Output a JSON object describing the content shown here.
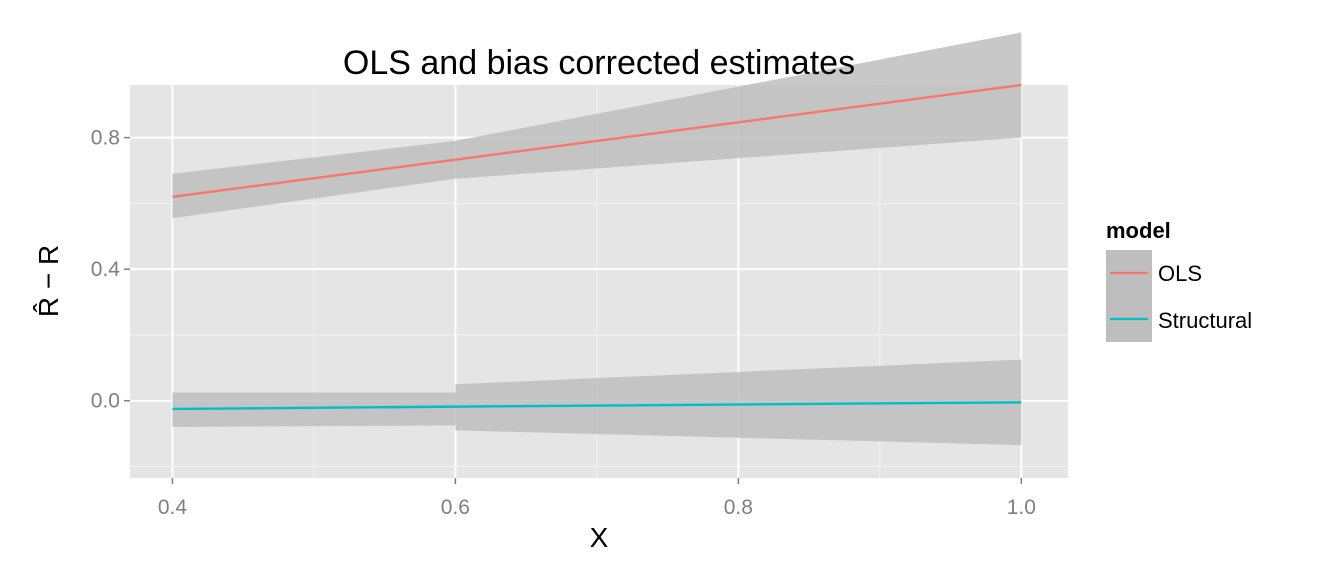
{
  "chart_data": {
    "type": "line",
    "title": "OLS and bias corrected estimates",
    "xlabel": "X",
    "ylabel": "R̂ − R",
    "xlim": [
      0.37,
      1.033
    ],
    "ylim": [
      -0.235,
      0.96
    ],
    "x_ticks": [
      0.4,
      0.6,
      0.8,
      1.0
    ],
    "x_tick_labels": [
      "0.4",
      "0.6",
      "0.8",
      "1.0"
    ],
    "x_minor_ticks": [
      0.5,
      0.7,
      0.9
    ],
    "y_ticks": [
      0.0,
      0.4,
      0.8
    ],
    "y_tick_labels": [
      "0.0",
      "0.4",
      "0.8"
    ],
    "y_minor_ticks": [
      -0.2,
      0.2,
      0.6
    ],
    "grid": true,
    "legend": {
      "title": "model",
      "position": "right",
      "entries": [
        "OLS",
        "Structural"
      ]
    },
    "series": [
      {
        "name": "OLS",
        "color": "#F8766D",
        "x": [
          0.4,
          0.6,
          0.6,
          1.0
        ],
        "y": [
          0.62,
          0.733,
          0.733,
          0.96
        ],
        "lower": [
          0.555,
          0.675,
          0.675,
          0.8
        ],
        "upper": [
          0.69,
          0.79,
          0.79,
          1.12
        ]
      },
      {
        "name": "Structural",
        "color": "#00BFC4",
        "x": [
          0.4,
          0.6,
          0.6,
          1.0
        ],
        "y": [
          -0.025,
          -0.018,
          -0.018,
          -0.005
        ],
        "lower": [
          -0.08,
          -0.075,
          -0.09,
          -0.135
        ],
        "upper": [
          0.025,
          0.025,
          0.05,
          0.125
        ]
      }
    ],
    "ribbon_color": "#BEBEBE",
    "panel_background": "#E5E5E5",
    "grid_color": "#FFFFFF"
  }
}
